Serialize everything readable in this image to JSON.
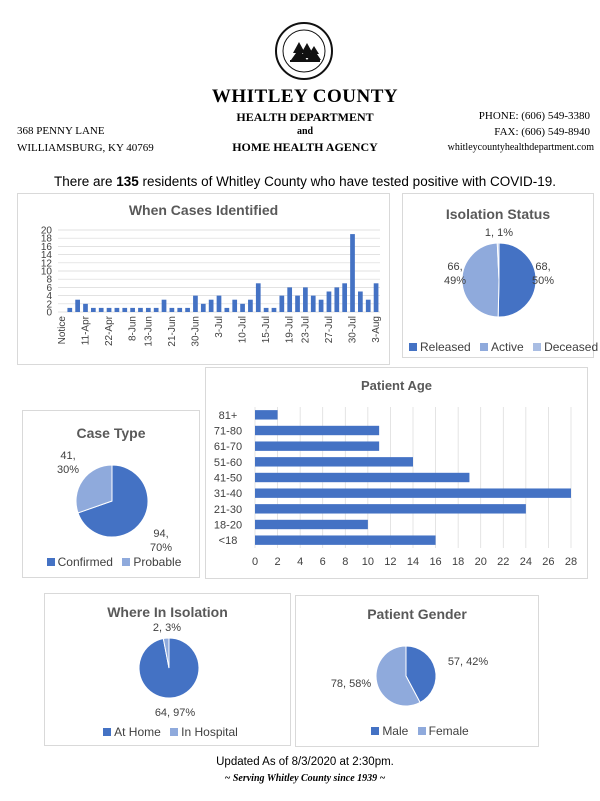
{
  "header": {
    "org_name": "WHITLEY COUNTY",
    "dept_line1": "HEALTH DEPARTMENT",
    "dept_and": "and",
    "dept_line2": "HOME HEALTH AGENCY",
    "address1": "368 PENNY LANE",
    "address2": "WILLIAMSBURG, KY 40769",
    "phone": "PHONE: (606) 549-3380",
    "fax": "FAX: (606) 549-8940",
    "website": "whitleycountyhealthdepartment.com",
    "seal_text": "WHITLEY COUNTY HEALTH DEPARTMENT"
  },
  "headline": {
    "prefix": "There are ",
    "count": "135",
    "suffix": " residents of Whitley County who have tested positive with COVID-19."
  },
  "colors": {
    "dark_blue": "#4472c4",
    "light_blue": "#8faadc",
    "deceased_blue": "#a9bde3"
  },
  "chart_data": [
    {
      "id": "when-cases",
      "type": "bar",
      "title": "When Cases Identified",
      "x_tick_labels": [
        "Notice",
        "11-Apr",
        "22-Apr",
        "8-Jun",
        "13-Jun",
        "21-Jun",
        "30-Jun",
        "3-Jul",
        "10-Jul",
        "15-Jul",
        "19-Jul",
        "23-Jul",
        "27-Jul",
        "30-Jul",
        "3-Aug"
      ],
      "values": [
        0,
        1,
        3,
        2,
        1,
        1,
        1,
        1,
        1,
        1,
        1,
        1,
        1,
        3,
        1,
        1,
        1,
        4,
        2,
        3,
        4,
        1,
        3,
        2,
        3,
        7,
        1,
        1,
        4,
        6,
        4,
        6,
        4,
        3,
        5,
        6,
        7,
        19,
        5,
        3,
        7
      ],
      "y_ticks": [
        0,
        2,
        4,
        6,
        8,
        10,
        12,
        14,
        16,
        18,
        20
      ],
      "ylim": [
        0,
        20
      ]
    },
    {
      "id": "isolation-status",
      "type": "pie",
      "title": "Isolation Status",
      "slices": [
        {
          "name": "Released",
          "value": 68,
          "label": "68,\n50%",
          "color": "#4472c4"
        },
        {
          "name": "Active",
          "value": 66,
          "label": "66,\n49%",
          "color": "#8faadc"
        },
        {
          "name": "Deceased",
          "value": 1,
          "label": "1, 1%",
          "color": "#a9bde3"
        }
      ]
    },
    {
      "id": "patient-age",
      "type": "bar",
      "orientation": "horizontal",
      "title": "Patient Age",
      "categories": [
        "81+",
        "71-80",
        "61-70",
        "51-60",
        "41-50",
        "31-40",
        "21-30",
        "18-20",
        "<18"
      ],
      "values": [
        2,
        11,
        11,
        14,
        19,
        28,
        24,
        10,
        16
      ],
      "x_ticks": [
        0,
        2,
        4,
        6,
        8,
        10,
        12,
        14,
        16,
        18,
        20,
        22,
        24,
        26,
        28
      ],
      "xlim": [
        0,
        28
      ]
    },
    {
      "id": "case-type",
      "type": "pie",
      "title": "Case Type",
      "slices": [
        {
          "name": "Confirmed",
          "value": 94,
          "label": "94,\n70%",
          "color": "#4472c4"
        },
        {
          "name": "Probable",
          "value": 41,
          "label": "41,\n30%",
          "color": "#8faadc"
        }
      ]
    },
    {
      "id": "where-isolation",
      "type": "pie",
      "title": "Where In Isolation",
      "slices": [
        {
          "name": "At Home",
          "value": 64,
          "label": "64, 97%",
          "color": "#4472c4"
        },
        {
          "name": "In Hospital",
          "value": 2,
          "label": "2, 3%",
          "color": "#8faadc"
        }
      ]
    },
    {
      "id": "patient-gender",
      "type": "pie",
      "title": "Patient Gender",
      "slices": [
        {
          "name": "Male",
          "value": 57,
          "label": "57, 42%",
          "color": "#4472c4"
        },
        {
          "name": "Female",
          "value": 78,
          "label": "78, 58%",
          "color": "#8faadc"
        }
      ]
    }
  ],
  "footer": {
    "updated": "Updated As of 8/3/2020 at 2:30pm.",
    "serving": "~ Serving Whitley County since 1939 ~"
  }
}
